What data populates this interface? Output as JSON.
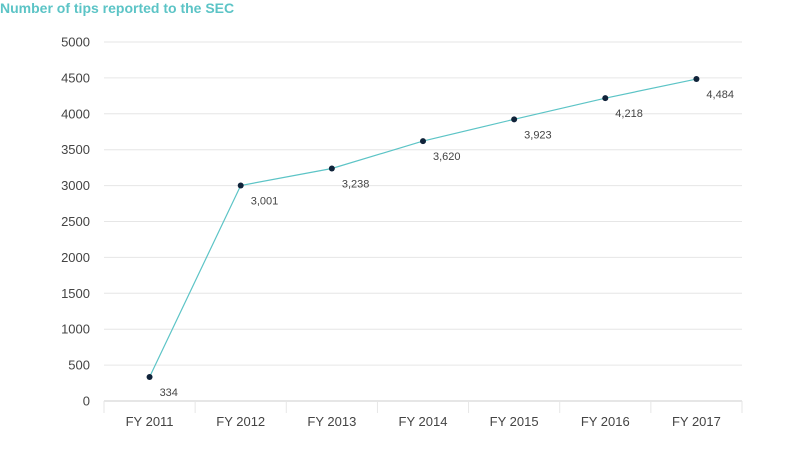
{
  "title": "Number of tips reported to the SEC",
  "colors": {
    "title": "#5cc4c6",
    "line": "#5cc4c6",
    "point": "#10233a",
    "grid": "#e6e6e6",
    "axis": "#cccccc",
    "text": "#444444"
  },
  "chart_data": {
    "type": "line",
    "title": "Number of tips reported to the SEC",
    "xlabel": "",
    "ylabel": "",
    "categories": [
      "FY 2011",
      "FY 2012",
      "FY 2013",
      "FY 2014",
      "FY 2015",
      "FY 2016",
      "FY 2017"
    ],
    "series": [
      {
        "values": [
          334,
          3001,
          3238,
          3620,
          3923,
          4218,
          4484
        ],
        "labels": [
          "334",
          "3,001",
          "3,238",
          "3,620",
          "3,923",
          "4,218",
          "4,484"
        ]
      }
    ],
    "ylim": [
      0,
      5000
    ],
    "yticks": [
      0,
      500,
      1000,
      1500,
      2000,
      2500,
      3000,
      3500,
      4000,
      4500,
      5000
    ],
    "grid": true,
    "legend": "none"
  }
}
